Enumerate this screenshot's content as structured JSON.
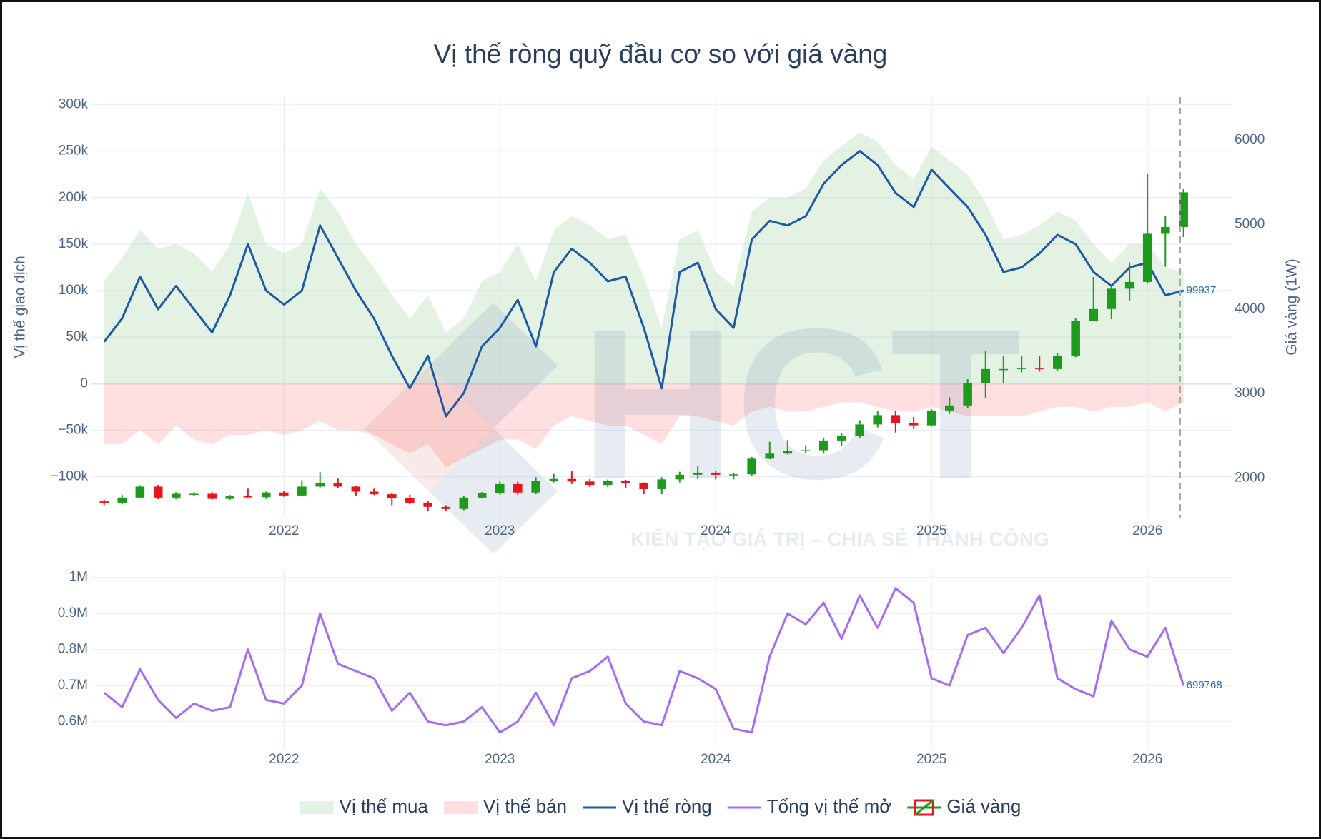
{
  "chart_data": [
    {
      "type": "combo",
      "title": "Vị thế ròng quỹ đầu cơ so với giá vàng",
      "ylabel": "Vị thế giao dịch",
      "y2label": "Giá vàng (1W)",
      "watermark": {
        "logo": "HCT",
        "text": "KIẾN TẠO GIÁ TRỊ – CHIA SẺ THÀNH CÔNG"
      },
      "x": [
        2021.167,
        2021.25,
        2021.333,
        2021.417,
        2021.5,
        2021.583,
        2021.667,
        2021.75,
        2021.833,
        2021.917,
        2022,
        2022.083,
        2022.167,
        2022.25,
        2022.333,
        2022.417,
        2022.5,
        2022.583,
        2022.667,
        2022.75,
        2022.833,
        2022.917,
        2023,
        2023.083,
        2023.167,
        2023.25,
        2023.333,
        2023.417,
        2023.5,
        2023.583,
        2023.667,
        2023.75,
        2023.833,
        2023.917,
        2024,
        2024.083,
        2024.167,
        2024.25,
        2024.333,
        2024.417,
        2024.5,
        2024.583,
        2024.667,
        2024.75,
        2024.833,
        2024.917,
        2025,
        2025.083,
        2025.167,
        2025.25,
        2025.333,
        2025.417,
        2025.5,
        2025.583,
        2025.667,
        2025.75,
        2025.833,
        2025.917,
        2026,
        2026.083,
        2026.167
      ],
      "xlim": [
        2021.105,
        2026.39
      ],
      "xticks": [
        2022,
        2023,
        2024,
        2025,
        2026
      ],
      "ylim": [
        -144000,
        308000
      ],
      "yticks": [
        {
          "value": -100000,
          "label": "−100k"
        },
        {
          "value": -50000,
          "label": "−50k"
        },
        0,
        {
          "value": 50000,
          "label": "50k"
        },
        {
          "value": 100000,
          "label": "100k"
        },
        {
          "value": 150000,
          "label": "150k"
        },
        {
          "value": 200000,
          "label": "200k"
        },
        {
          "value": 250000,
          "label": "250k"
        },
        {
          "value": 300000,
          "label": "300k"
        }
      ],
      "y2lim": [
        1532,
        6507
      ],
      "y2ticks": [
        2000,
        3000,
        4000,
        5000,
        6000
      ],
      "grid": true,
      "vline": 2026.15,
      "series": [
        {
          "name": "Vị thế mua",
          "type": "area",
          "color": "rgba(120,190,120,0.2)",
          "values": [
            110000,
            135000,
            165000,
            145000,
            150000,
            140000,
            120000,
            150000,
            205000,
            150000,
            140000,
            150000,
            210000,
            185000,
            150000,
            125000,
            95000,
            70000,
            95000,
            55000,
            70000,
            110000,
            120000,
            150000,
            110000,
            165000,
            180000,
            170000,
            155000,
            160000,
            115000,
            60000,
            155000,
            165000,
            120000,
            105000,
            185000,
            200000,
            200000,
            210000,
            240000,
            255000,
            270000,
            260000,
            235000,
            220000,
            255000,
            240000,
            225000,
            195000,
            155000,
            160000,
            170000,
            185000,
            175000,
            150000,
            130000,
            150000,
            150000,
            125000,
            120000
          ]
        },
        {
          "name": "Vị thế bán",
          "type": "area",
          "color": "rgba(255,150,150,0.3)",
          "values": [
            -65000,
            -65000,
            -50000,
            -65000,
            -45000,
            -60000,
            -65000,
            -55000,
            -55000,
            -50000,
            -55000,
            -50000,
            -40000,
            -50000,
            -50000,
            -55000,
            -65000,
            -75000,
            -65000,
            -90000,
            -80000,
            -70000,
            -60000,
            -60000,
            -70000,
            -45000,
            -35000,
            -40000,
            -45000,
            -45000,
            -55000,
            -65000,
            -35000,
            -35000,
            -40000,
            -45000,
            -30000,
            -25000,
            -30000,
            -30000,
            -25000,
            -20000,
            -20000,
            -25000,
            -30000,
            -30000,
            -25000,
            -30000,
            -35000,
            -35000,
            -35000,
            -35000,
            -30000,
            -25000,
            -25000,
            -30000,
            -25000,
            -25000,
            -20000,
            -30000,
            -20063
          ]
        },
        {
          "name": "Vị thế ròng",
          "type": "line",
          "color": "#1f5aa6",
          "values": [
            45000,
            70000,
            115000,
            80000,
            105000,
            80000,
            55000,
            95000,
            150000,
            100000,
            85000,
            100000,
            170000,
            135000,
            100000,
            70000,
            30000,
            -5000,
            30000,
            -35000,
            -10000,
            40000,
            60000,
            90000,
            40000,
            120000,
            145000,
            130000,
            110000,
            115000,
            60000,
            -5000,
            120000,
            130000,
            80000,
            60000,
            155000,
            175000,
            170000,
            180000,
            215000,
            235000,
            250000,
            235000,
            205000,
            190000,
            230000,
            210000,
            190000,
            160000,
            120000,
            125000,
            140000,
            160000,
            150000,
            120000,
            105000,
            125000,
            130000,
            95000,
            99937
          ]
        },
        {
          "name": "Giá vàng",
          "type": "candlestick",
          "axis": "y2",
          "up_color": "#1e9a1e",
          "down_color": "#e8141c",
          "open": [
            1725,
            1710,
            1770,
            1900,
            1770,
            1815,
            1815,
            1755,
            1785,
            1775,
            1830,
            1795,
            1900,
            1940,
            1900,
            1840,
            1810,
            1765,
            1710,
            1660,
            1635,
            1770,
            1825,
            1930,
            1830,
            1970,
            1990,
            1960,
            1920,
            1965,
            1940,
            1870,
            1985,
            2040,
            2065,
            2040,
            2045,
            2230,
            2290,
            2325,
            2330,
            2445,
            2500,
            2635,
            2745,
            2650,
            2625,
            2800,
            2860,
            3120,
            3290,
            3290,
            3305,
            3290,
            3450,
            3860,
            4000,
            4240,
            4320,
            4890,
            4970
          ],
          "high": [
            1745,
            1800,
            1915,
            1920,
            1835,
            1835,
            1835,
            1800,
            1875,
            1840,
            1850,
            1975,
            2070,
            1995,
            1910,
            1875,
            1820,
            1805,
            1730,
            1680,
            1790,
            1835,
            1960,
            1960,
            2010,
            2050,
            2080,
            1990,
            1985,
            1980,
            1950,
            2010,
            2075,
            2145,
            2090,
            2065,
            2250,
            2430,
            2450,
            2390,
            2480,
            2530,
            2685,
            2790,
            2800,
            2725,
            2815,
            2955,
            3170,
            3500,
            3440,
            3450,
            3440,
            3480,
            3890,
            4380,
            4260,
            4550,
            5600,
            5100,
            5420
          ],
          "low": [
            1680,
            1690,
            1760,
            1750,
            1750,
            1790,
            1745,
            1745,
            1760,
            1755,
            1780,
            1785,
            1890,
            1880,
            1790,
            1800,
            1680,
            1690,
            1615,
            1615,
            1620,
            1760,
            1805,
            1805,
            1810,
            1950,
            1930,
            1895,
            1895,
            1885,
            1810,
            1810,
            1950,
            1990,
            1985,
            1985,
            2030,
            2225,
            2280,
            2290,
            2290,
            2380,
            2470,
            2600,
            2540,
            2580,
            2610,
            2760,
            2830,
            2950,
            3120,
            3250,
            3260,
            3270,
            3430,
            3900,
            3880,
            4100,
            4300,
            4500,
            4850
          ],
          "close": [
            1710,
            1770,
            1900,
            1770,
            1815,
            1815,
            1755,
            1785,
            1775,
            1830,
            1795,
            1900,
            1940,
            1900,
            1840,
            1810,
            1765,
            1710,
            1660,
            1635,
            1770,
            1825,
            1930,
            1830,
            1970,
            1990,
            1960,
            1920,
            1965,
            1940,
            1870,
            1985,
            2040,
            2065,
            2040,
            2045,
            2230,
            2290,
            2325,
            2330,
            2445,
            2500,
            2635,
            2745,
            2650,
            2625,
            2800,
            2860,
            3120,
            3290,
            3290,
            3305,
            3290,
            3450,
            3860,
            4000,
            4240,
            4320,
            4890,
            4970,
            5380
          ]
        }
      ]
    },
    {
      "type": "line",
      "x": [
        2021.167,
        2021.25,
        2021.333,
        2021.417,
        2021.5,
        2021.583,
        2021.667,
        2021.75,
        2021.833,
        2021.917,
        2022,
        2022.083,
        2022.167,
        2022.25,
        2022.333,
        2022.417,
        2022.5,
        2022.583,
        2022.667,
        2022.75,
        2022.833,
        2022.917,
        2023,
        2023.083,
        2023.167,
        2023.25,
        2023.333,
        2023.417,
        2023.5,
        2023.583,
        2023.667,
        2023.75,
        2023.833,
        2023.917,
        2024,
        2024.083,
        2024.167,
        2024.25,
        2024.333,
        2024.417,
        2024.5,
        2024.583,
        2024.667,
        2024.75,
        2024.833,
        2024.917,
        2025,
        2025.083,
        2025.167,
        2025.25,
        2025.333,
        2025.417,
        2025.5,
        2025.583,
        2025.667,
        2025.75,
        2025.833,
        2025.917,
        2026,
        2026.083,
        2026.167
      ],
      "xlim": [
        2021.105,
        2026.39
      ],
      "xticks": [
        2022,
        2023,
        2024,
        2025,
        2026
      ],
      "ylim": [
        520000,
        1021000
      ],
      "yticks": [
        {
          "value": 600000,
          "label": "0.6M"
        },
        {
          "value": 700000,
          "label": "0.7M"
        },
        {
          "value": 800000,
          "label": "0.8M"
        },
        {
          "value": 900000,
          "label": "0.9M"
        },
        {
          "value": 1000000,
          "label": "1M"
        }
      ],
      "grid": true,
      "series": [
        {
          "name": "Tổng vị thế mở",
          "type": "line",
          "color": "#a66cf0",
          "values": [
            680000,
            640000,
            745000,
            660000,
            610000,
            650000,
            630000,
            640000,
            800000,
            660000,
            650000,
            700000,
            900000,
            760000,
            740000,
            720000,
            630000,
            680000,
            600000,
            590000,
            600000,
            640000,
            570000,
            600000,
            680000,
            590000,
            720000,
            740000,
            780000,
            650000,
            600000,
            590000,
            740000,
            720000,
            690000,
            580000,
            570000,
            780000,
            900000,
            870000,
            930000,
            830000,
            950000,
            860000,
            970000,
            930000,
            720000,
            700000,
            840000,
            860000,
            790000,
            860000,
            950000,
            720000,
            690000,
            670000,
            880000,
            800000,
            780000,
            860000,
            699768
          ]
        }
      ]
    }
  ]
}
